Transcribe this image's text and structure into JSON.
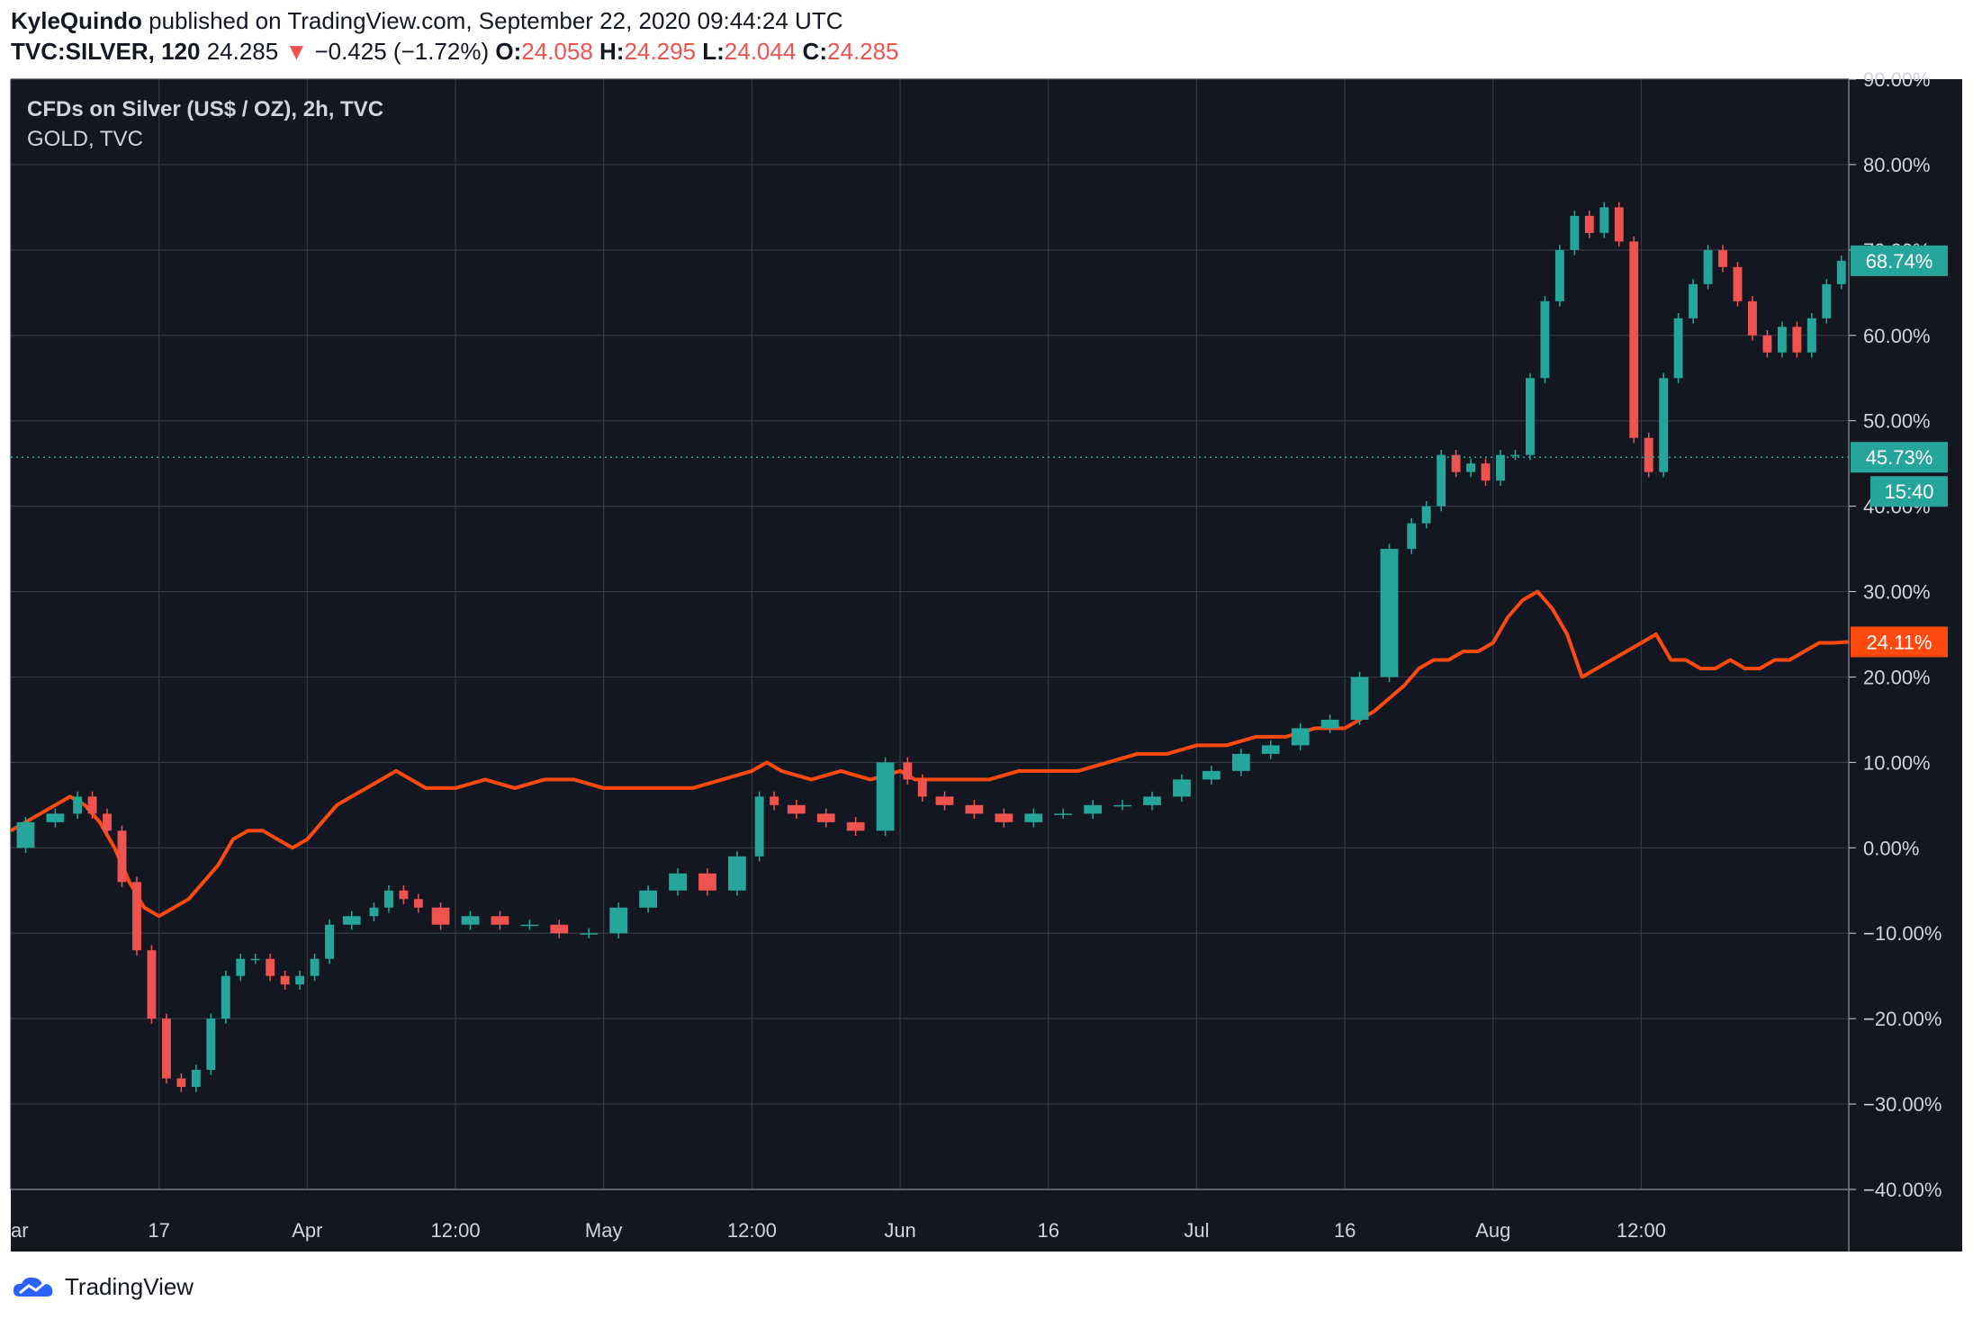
{
  "header": {
    "author": "KyleQuindo",
    "published_text": "published on TradingView.com, September 22, 2020 09:44:24 UTC",
    "symbol": "TVC:SILVER, 120",
    "last": "24.285",
    "change_arrow": "▼",
    "change": "−0.425 (−1.72%)",
    "o_label": "O:",
    "o_value": "24.058",
    "h_label": "H:",
    "h_value": "24.295",
    "l_label": "L:",
    "l_value": "24.044",
    "c_label": "C:",
    "c_value": "24.285"
  },
  "footer": {
    "brand": "TradingView",
    "logo_icon": "tradingview-cloud-icon"
  },
  "colors": {
    "background": "#131722",
    "grid": "#363a45",
    "text": "#d1d4dc",
    "silver_up": "#26a69a",
    "silver_down": "#ef5350",
    "gold": "#ff4a0f",
    "brand": "#2962ff"
  },
  "chart_data": {
    "type": "line",
    "title": "CFDs on Silver (US$ / OZ), 2h, TVC",
    "subtitle": "GOLD, TVC",
    "yaxis": {
      "ticks": [
        "90.00%",
        "80.00%",
        "70.00%",
        "60.00%",
        "50.00%",
        "40.00%",
        "30.00%",
        "20.00%",
        "10.00%",
        "0.00%",
        "−10.00%",
        "−20.00%",
        "−30.00%",
        "−40.00%"
      ],
      "tick_values": [
        90,
        80,
        70,
        60,
        50,
        40,
        30,
        20,
        10,
        0,
        -10,
        -20,
        -30,
        -40
      ],
      "ylim": [
        -40,
        90
      ]
    },
    "xaxis": {
      "ticks": [
        "ar",
        "17",
        "Apr",
        "12:00",
        "May",
        "12:00",
        "Jun",
        "16",
        "Jul",
        "16",
        "Aug",
        "12:00"
      ],
      "tick_positions": [
        0,
        10,
        20,
        30,
        40,
        50,
        60,
        70,
        80,
        90,
        100,
        110
      ],
      "xlim": [
        0,
        124
      ]
    },
    "series": [
      {
        "name": "SILVER",
        "style": "candles",
        "x": [
          0,
          2,
          4,
          5,
          6,
          7,
          8,
          9,
          10,
          11,
          12,
          13,
          14,
          15,
          16,
          17,
          18,
          19,
          20,
          21,
          22,
          24,
          25,
          26,
          27,
          28,
          30,
          32,
          34,
          36,
          38,
          40,
          42,
          44,
          46,
          48,
          50,
          51,
          52,
          54,
          56,
          58,
          60,
          61,
          62,
          64,
          66,
          68,
          70,
          72,
          74,
          76,
          78,
          80,
          82,
          84,
          86,
          88,
          90,
          92,
          94,
          95,
          96,
          97,
          98,
          99,
          100,
          101,
          102,
          103,
          104,
          105,
          106,
          107,
          108,
          109,
          110,
          111,
          112,
          113,
          114,
          115,
          116,
          117,
          118,
          119,
          120,
          121,
          122,
          123,
          124
        ],
        "y": [
          0,
          3,
          4,
          6,
          4,
          2,
          -4,
          -12,
          -20,
          -27,
          -28,
          -26,
          -20,
          -15,
          -13,
          -13,
          -15,
          -16,
          -15,
          -13,
          -9,
          -8,
          -7,
          -5,
          -6,
          -7,
          -9,
          -8,
          -9,
          -9,
          -10,
          -10,
          -7,
          -5,
          -3,
          -5,
          -1,
          6,
          5,
          4,
          3,
          2,
          10,
          8,
          6,
          5,
          4,
          3,
          4,
          4,
          5,
          5,
          6,
          8,
          9,
          11,
          12,
          14,
          15,
          20,
          35,
          38,
          40,
          46,
          44,
          45,
          43,
          46,
          46,
          55,
          64,
          70,
          74,
          72,
          75,
          71,
          48,
          44,
          55,
          62,
          66,
          70,
          68,
          64,
          60,
          58,
          61,
          58,
          62,
          66,
          68.74
        ]
      },
      {
        "name": "GOLD",
        "style": "line",
        "x": [
          0,
          2,
          4,
          5,
          6,
          7,
          8,
          9,
          10,
          11,
          12,
          13,
          14,
          15,
          16,
          17,
          18,
          19,
          20,
          21,
          22,
          24,
          25,
          26,
          27,
          28,
          30,
          32,
          34,
          36,
          38,
          40,
          42,
          44,
          46,
          48,
          50,
          51,
          52,
          54,
          56,
          58,
          60,
          61,
          62,
          64,
          66,
          68,
          70,
          72,
          74,
          76,
          78,
          80,
          82,
          84,
          86,
          88,
          90,
          92,
          94,
          95,
          96,
          97,
          98,
          99,
          100,
          101,
          102,
          103,
          104,
          105,
          106,
          107,
          108,
          109,
          110,
          111,
          112,
          113,
          114,
          115,
          116,
          117,
          118,
          119,
          120,
          121,
          122,
          123,
          124
        ],
        "y": [
          2,
          4,
          6,
          5,
          3,
          0,
          -4,
          -7,
          -8,
          -7,
          -6,
          -4,
          -2,
          1,
          2,
          2,
          1,
          0,
          1,
          3,
          5,
          7,
          8,
          9,
          8,
          7,
          7,
          8,
          7,
          8,
          8,
          7,
          7,
          7,
          7,
          8,
          9,
          10,
          9,
          8,
          9,
          8,
          9,
          8,
          8,
          8,
          8,
          9,
          9,
          9,
          10,
          11,
          11,
          12,
          12,
          13,
          13,
          14,
          14,
          16,
          19,
          21,
          22,
          22,
          23,
          23,
          24,
          27,
          29,
          30,
          28,
          25,
          20,
          21,
          22,
          23,
          24,
          25,
          22,
          22,
          21,
          21,
          22,
          21,
          21,
          22,
          22,
          23,
          24,
          24,
          24.11
        ]
      }
    ],
    "last_labels": {
      "silver": "68.74%",
      "gold": "24.11%",
      "dotted": "45.73%",
      "countdown": "15:40"
    },
    "dotted_level": 45.73,
    "grid": true,
    "legend": "top-left"
  }
}
